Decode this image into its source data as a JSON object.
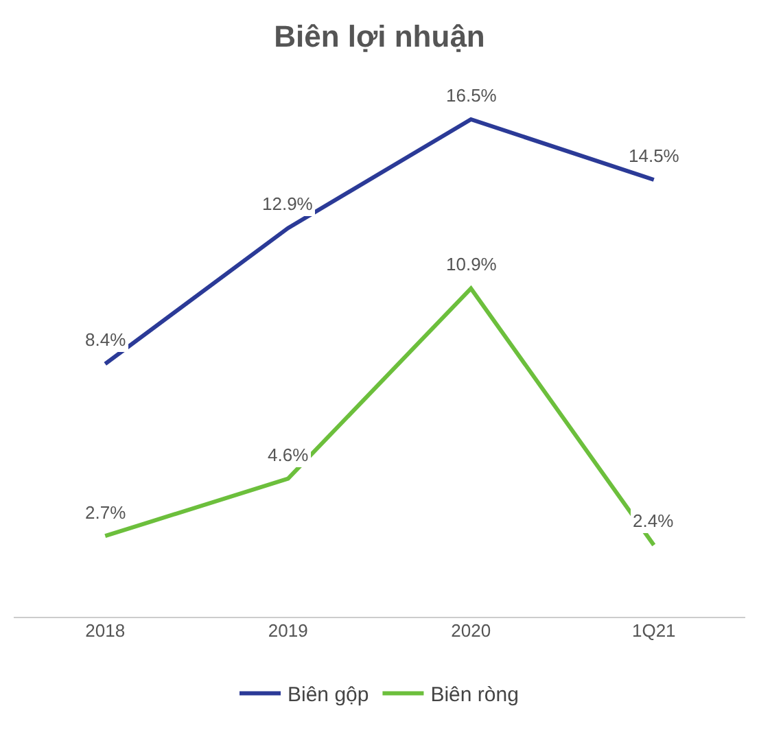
{
  "chart_data": {
    "type": "line",
    "title": "Biên lợi nhuận",
    "categories": [
      "2018",
      "2019",
      "2020",
      "1Q21"
    ],
    "series": [
      {
        "name": "Biên gộp",
        "color": "#2b3a97",
        "values": [
          8.4,
          12.9,
          16.5,
          14.5
        ],
        "value_labels": [
          "8.4%",
          "12.9%",
          "16.5%",
          "14.5%"
        ]
      },
      {
        "name": "Biên ròng",
        "color": "#6cbf3c",
        "values": [
          2.7,
          4.6,
          10.9,
          2.4
        ],
        "value_labels": [
          "2.7%",
          "4.6%",
          "10.9%",
          "2.4%"
        ]
      }
    ],
    "grid": false,
    "legend": "bottom",
    "marker": "none",
    "line_style": "solid"
  }
}
